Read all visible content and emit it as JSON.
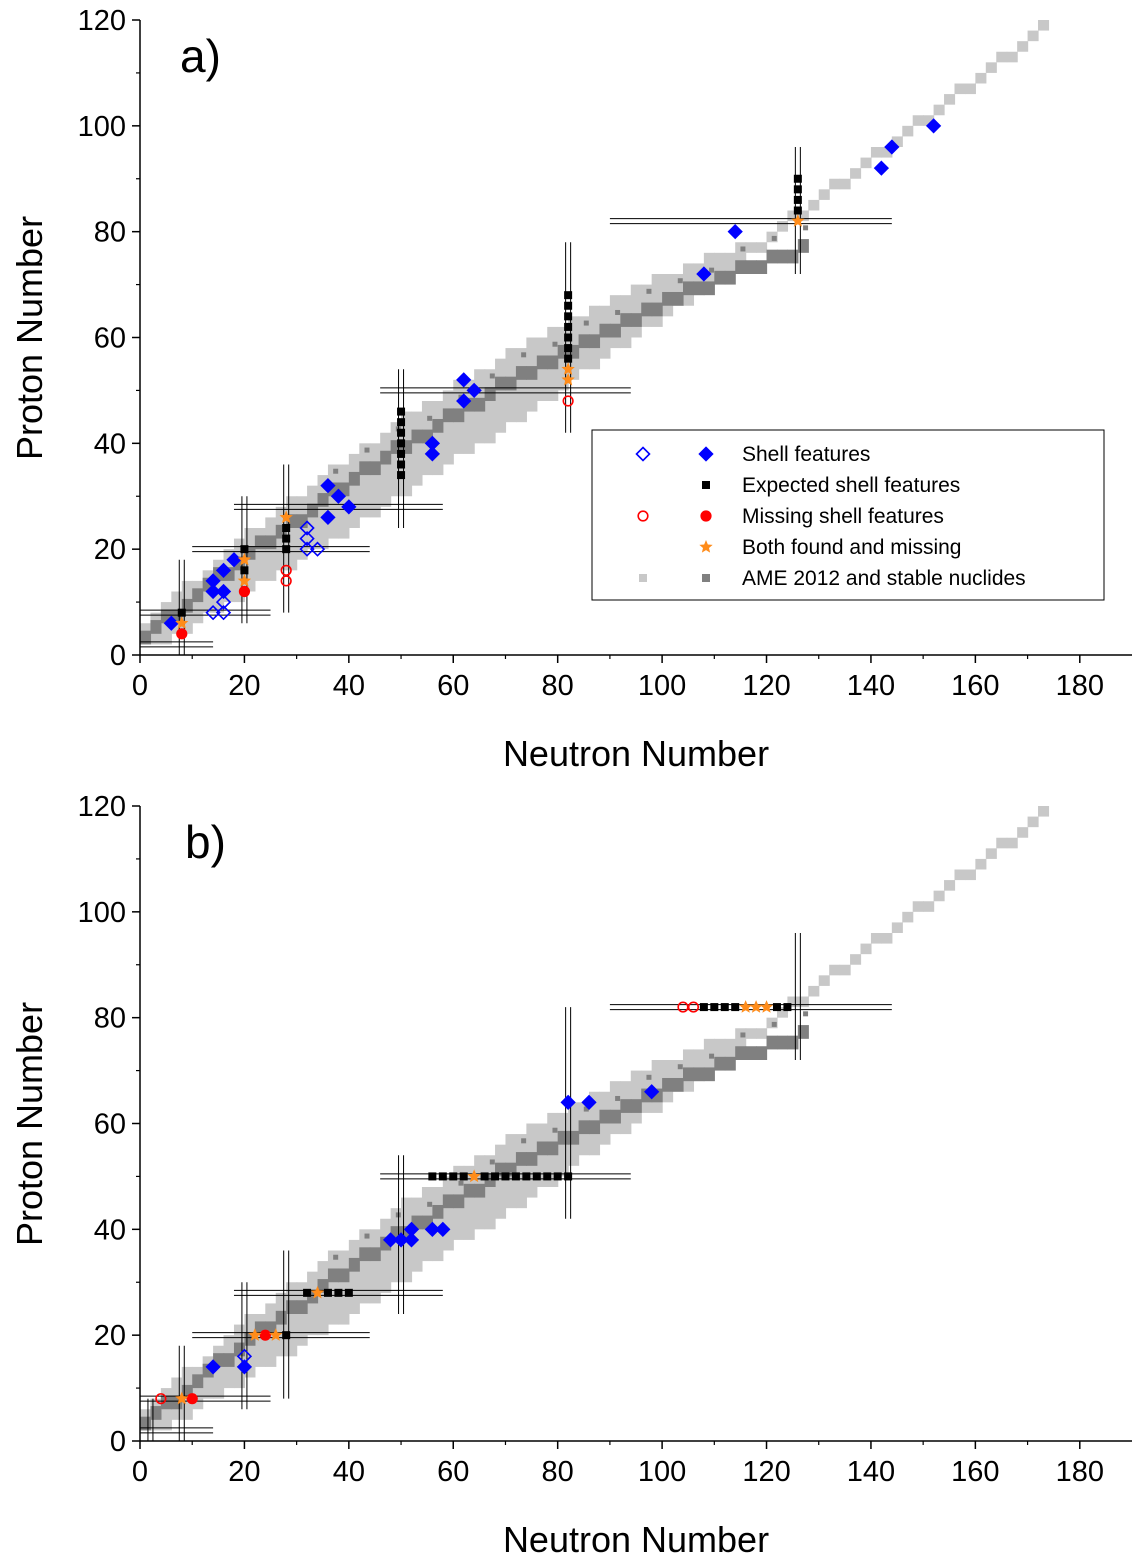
{
  "colors": {
    "band_light": "#c8c8c8",
    "stable_dark": "#808080",
    "shell_blue": "#0000ff",
    "expected_black": "#000000",
    "missing_red": "#ff0000",
    "both_orange": "#ff8c1a"
  },
  "legend": {
    "shell": "Shell features",
    "expected": "Expected shell features",
    "missing": "Missing shell features",
    "both": "Both found and missing",
    "ame": "AME 2012 and stable nuclides"
  },
  "chart_data": [
    {
      "type": "scatter",
      "panel_label": "a)",
      "xlabel": "Neutron Number",
      "ylabel": "Proton Number",
      "xlim": [
        0,
        190
      ],
      "ylim": [
        0,
        120
      ],
      "x_ticks": [
        0,
        20,
        40,
        60,
        80,
        100,
        120,
        140,
        160,
        180
      ],
      "y_ticks": [
        0,
        20,
        40,
        60,
        80,
        100,
        120
      ],
      "legend_position": "center-right",
      "magic_lines": {
        "vertical": [
          {
            "x": 8,
            "ymin": 0,
            "ymax": 18
          },
          {
            "x": 20,
            "ymin": 6,
            "ymax": 30
          },
          {
            "x": 28,
            "ymin": 8,
            "ymax": 36
          },
          {
            "x": 50,
            "ymin": 24,
            "ymax": 54
          },
          {
            "x": 82,
            "ymin": 42,
            "ymax": 78
          },
          {
            "x": 126,
            "ymin": 72,
            "ymax": 96
          }
        ],
        "horizontal": [
          {
            "y": 2,
            "xmin": 0,
            "xmax": 14
          },
          {
            "y": 8,
            "xmin": 0,
            "xmax": 25
          },
          {
            "y": 20,
            "xmin": 10,
            "xmax": 44
          },
          {
            "y": 28,
            "xmin": 18,
            "xmax": 58
          },
          {
            "y": 50,
            "xmin": 46,
            "xmax": 94
          },
          {
            "y": 82,
            "xmin": 90,
            "xmax": 144
          }
        ]
      },
      "series": [
        {
          "name": "Shell features",
          "marker": "diamond-open",
          "points": [
            [
              14,
              8
            ],
            [
              16,
              8
            ],
            [
              16,
              10
            ],
            [
              32,
              20
            ],
            [
              32,
              22
            ],
            [
              32,
              24
            ],
            [
              34,
              20
            ]
          ]
        },
        {
          "name": "Shell features",
          "marker": "diamond-filled",
          "points": [
            [
              6,
              6
            ],
            [
              14,
              12
            ],
            [
              14,
              14
            ],
            [
              16,
              12
            ],
            [
              16,
              16
            ],
            [
              18,
              18
            ],
            [
              36,
              26
            ],
            [
              36,
              32
            ],
            [
              38,
              30
            ],
            [
              40,
              28
            ],
            [
              56,
              38
            ],
            [
              56,
              40
            ],
            [
              62,
              48
            ],
            [
              62,
              52
            ],
            [
              64,
              50
            ],
            [
              108,
              72
            ],
            [
              114,
              80
            ],
            [
              142,
              92
            ],
            [
              144,
              96
            ],
            [
              152,
              100
            ]
          ]
        },
        {
          "name": "Expected shell features",
          "marker": "square",
          "points": [
            [
              8,
              8
            ],
            [
              20,
              16
            ],
            [
              20,
              20
            ],
            [
              28,
              20
            ],
            [
              28,
              22
            ],
            [
              28,
              24
            ],
            [
              50,
              34
            ],
            [
              50,
              36
            ],
            [
              50,
              38
            ],
            [
              50,
              40
            ],
            [
              50,
              42
            ],
            [
              50,
              44
            ],
            [
              50,
              46
            ],
            [
              82,
              56
            ],
            [
              82,
              58
            ],
            [
              82,
              60
            ],
            [
              82,
              62
            ],
            [
              82,
              64
            ],
            [
              82,
              66
            ],
            [
              82,
              68
            ],
            [
              126,
              84
            ],
            [
              126,
              86
            ],
            [
              126,
              88
            ],
            [
              126,
              90
            ]
          ]
        },
        {
          "name": "Missing shell features",
          "marker": "circle-open",
          "points": [
            [
              28,
              14
            ],
            [
              28,
              16
            ],
            [
              82,
              48
            ]
          ]
        },
        {
          "name": "Missing shell features",
          "marker": "circle-filled",
          "points": [
            [
              8,
              4
            ],
            [
              20,
              12
            ]
          ]
        },
        {
          "name": "Both found and missing",
          "marker": "star",
          "points": [
            [
              8,
              6
            ],
            [
              20,
              14
            ],
            [
              20,
              18
            ],
            [
              28,
              26
            ],
            [
              82,
              52
            ],
            [
              82,
              54
            ],
            [
              126,
              82
            ]
          ]
        }
      ]
    },
    {
      "type": "scatter",
      "panel_label": "b)",
      "xlabel": "Neutron Number",
      "ylabel": "Proton Number",
      "xlim": [
        0,
        190
      ],
      "ylim": [
        0,
        120
      ],
      "x_ticks": [
        0,
        20,
        40,
        60,
        80,
        100,
        120,
        140,
        160,
        180
      ],
      "y_ticks": [
        0,
        20,
        40,
        60,
        80,
        100,
        120
      ],
      "magic_lines": {
        "vertical": [
          {
            "x": 2,
            "ymin": 0,
            "ymax": 8
          },
          {
            "x": 8,
            "ymin": 0,
            "ymax": 18
          },
          {
            "x": 20,
            "ymin": 6,
            "ymax": 30
          },
          {
            "x": 28,
            "ymin": 8,
            "ymax": 36
          },
          {
            "x": 50,
            "ymin": 24,
            "ymax": 54
          },
          {
            "x": 82,
            "ymin": 42,
            "ymax": 82
          },
          {
            "x": 126,
            "ymin": 72,
            "ymax": 96
          }
        ],
        "horizontal": [
          {
            "y": 2,
            "xmin": 0,
            "xmax": 14
          },
          {
            "y": 8,
            "xmin": 0,
            "xmax": 25
          },
          {
            "y": 20,
            "xmin": 10,
            "xmax": 44
          },
          {
            "y": 28,
            "xmin": 18,
            "xmax": 58
          },
          {
            "y": 50,
            "xmin": 46,
            "xmax": 94
          },
          {
            "y": 82,
            "xmin": 90,
            "xmax": 144
          }
        ]
      },
      "series": [
        {
          "name": "Shell features",
          "marker": "diamond-open",
          "points": [
            [
              20,
              16
            ]
          ]
        },
        {
          "name": "Shell features",
          "marker": "diamond-filled",
          "points": [
            [
              14,
              14
            ],
            [
              20,
              14
            ],
            [
              48,
              38
            ],
            [
              50,
              38
            ],
            [
              52,
              38
            ],
            [
              52,
              40
            ],
            [
              56,
              40
            ],
            [
              58,
              40
            ],
            [
              82,
              64
            ],
            [
              86,
              64
            ],
            [
              98,
              66
            ]
          ]
        },
        {
          "name": "Expected shell features",
          "marker": "square",
          "points": [
            [
              28,
              20
            ],
            [
              32,
              28
            ],
            [
              36,
              28
            ],
            [
              38,
              28
            ],
            [
              40,
              28
            ],
            [
              56,
              50
            ],
            [
              58,
              50
            ],
            [
              60,
              50
            ],
            [
              62,
              50
            ],
            [
              66,
              50
            ],
            [
              68,
              50
            ],
            [
              70,
              50
            ],
            [
              72,
              50
            ],
            [
              74,
              50
            ],
            [
              76,
              50
            ],
            [
              78,
              50
            ],
            [
              80,
              50
            ],
            [
              82,
              50
            ],
            [
              108,
              82
            ],
            [
              110,
              82
            ],
            [
              112,
              82
            ],
            [
              114,
              82
            ],
            [
              122,
              82
            ],
            [
              124,
              82
            ]
          ]
        },
        {
          "name": "Missing shell features",
          "marker": "circle-open",
          "points": [
            [
              4,
              8
            ],
            [
              104,
              82
            ],
            [
              106,
              82
            ]
          ]
        },
        {
          "name": "Missing shell features",
          "marker": "circle-filled",
          "points": [
            [
              10,
              8
            ],
            [
              24,
              20
            ]
          ]
        },
        {
          "name": "Both found and missing",
          "marker": "star",
          "points": [
            [
              8,
              8
            ],
            [
              22,
              20
            ],
            [
              26,
              20
            ],
            [
              34,
              28
            ],
            [
              64,
              50
            ],
            [
              116,
              82
            ],
            [
              118,
              82
            ],
            [
              120,
              82
            ]
          ]
        }
      ]
    }
  ]
}
